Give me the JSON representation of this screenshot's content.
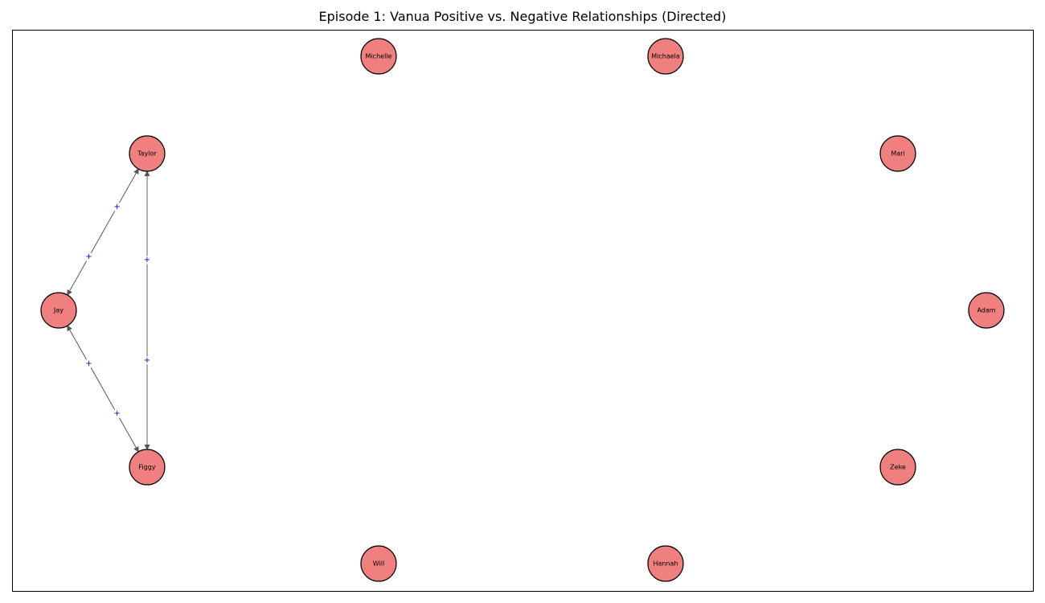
{
  "title": "Episode 1: Vanua Positive vs. Negative Relationships (Directed)",
  "colors": {
    "node_fill": "#f08080",
    "node_stroke": "#000000",
    "edge": "#555555",
    "positive_label": "#0000cc"
  },
  "nodes": [
    {
      "id": "Michelle",
      "label": "Michelle"
    },
    {
      "id": "Michaela",
      "label": "Michaela"
    },
    {
      "id": "Taylor",
      "label": "Taylor"
    },
    {
      "id": "Mari",
      "label": "Mari"
    },
    {
      "id": "Jay",
      "label": "Jay"
    },
    {
      "id": "Adam",
      "label": "Adam"
    },
    {
      "id": "Figgy",
      "label": "Figgy"
    },
    {
      "id": "Zeke",
      "label": "Zeke"
    },
    {
      "id": "Will",
      "label": "Will"
    },
    {
      "id": "Hannah",
      "label": "Hannah"
    }
  ],
  "edges": [
    {
      "source": "Jay",
      "target": "Taylor",
      "label": "+"
    },
    {
      "source": "Taylor",
      "target": "Jay",
      "label": "+"
    },
    {
      "source": "Figgy",
      "target": "Taylor",
      "label": "+"
    },
    {
      "source": "Taylor",
      "target": "Figgy",
      "label": "+"
    },
    {
      "source": "Jay",
      "target": "Figgy",
      "label": "+"
    },
    {
      "source": "Figgy",
      "target": "Jay",
      "label": "+"
    }
  ]
}
